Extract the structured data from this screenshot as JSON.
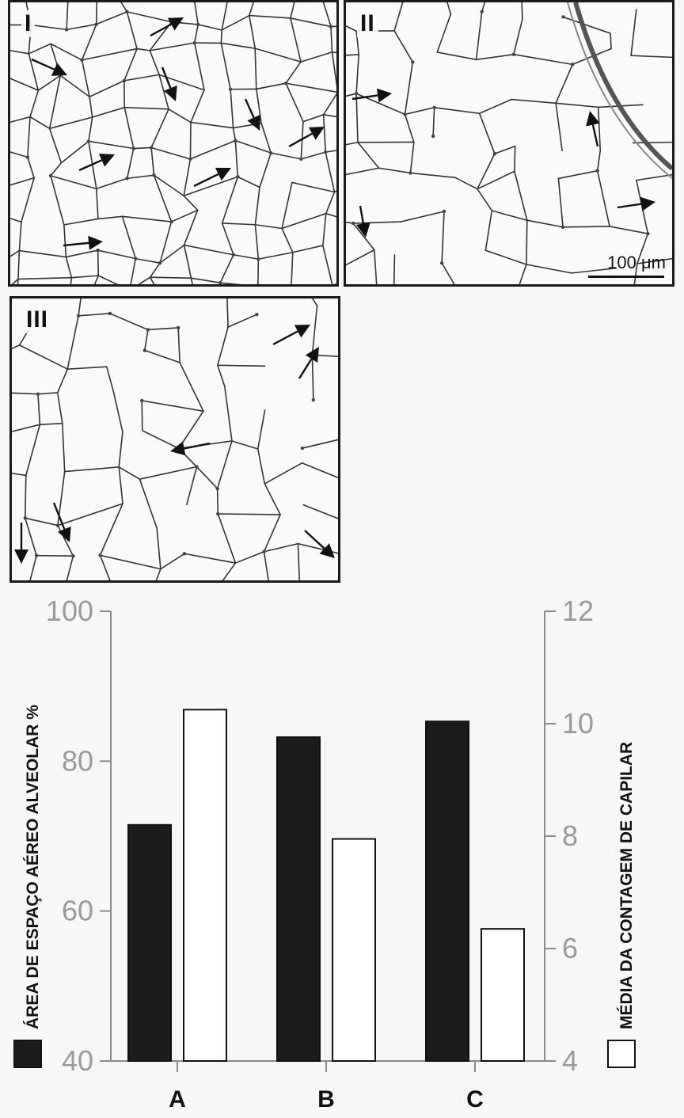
{
  "panels": [
    {
      "label": "I"
    },
    {
      "label": "II",
      "scale_bar_label": "100 μm"
    },
    {
      "label": "III"
    }
  ],
  "chart_data": {
    "type": "bar",
    "categories": [
      "A",
      "B",
      "C"
    ],
    "series": [
      {
        "name": "ÁREA DE ESPAÇO AÉREO ALVEOLAR %",
        "axis": "left",
        "fill": "#1c1c1c",
        "values": [
          71.5,
          83.2,
          85.3
        ]
      },
      {
        "name": "MÉDIA DA CONTAGEM DE CAPILAR",
        "axis": "right",
        "fill": "#ffffff",
        "values": [
          10.25,
          7.95,
          6.35
        ]
      }
    ],
    "left_axis": {
      "label": "ÁREA DE ESPAÇO AÉREO ALVEOLAR %",
      "range": [
        40,
        100
      ],
      "ticks": [
        40,
        60,
        80,
        100
      ]
    },
    "right_axis": {
      "label": "MÉDIA DA CONTAGEM DE CAPILAR",
      "range": [
        4,
        12
      ],
      "ticks": [
        4,
        6,
        8,
        10,
        12
      ]
    },
    "legend": "beside axis labels, bottom"
  }
}
